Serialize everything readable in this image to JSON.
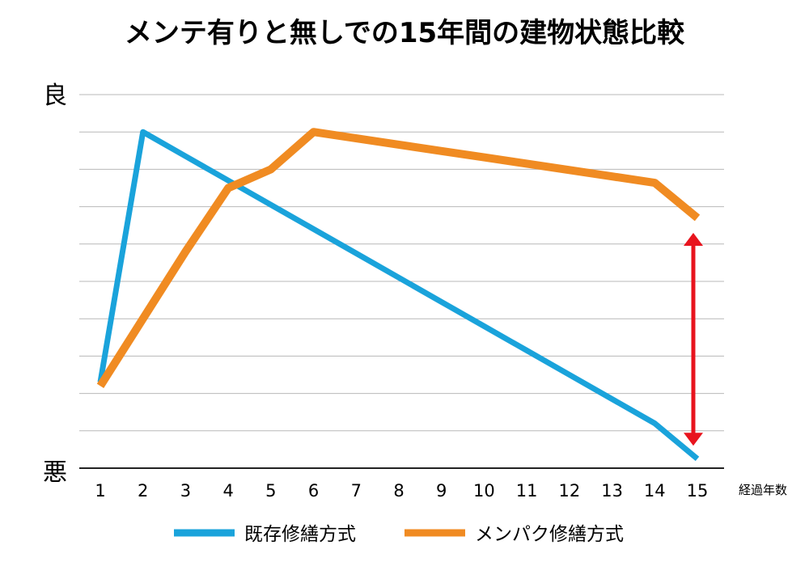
{
  "chart_data": {
    "type": "line",
    "title": "メンテ有りと無しでの15年間の建物状態比較",
    "xlabel": "経過年数",
    "ylabel_top": "良",
    "ylabel_bottom": "悪",
    "x": [
      1,
      2,
      3,
      4,
      5,
      6,
      7,
      8,
      9,
      10,
      11,
      12,
      13,
      14,
      15
    ],
    "ylim": [
      0,
      10
    ],
    "grid": true,
    "legend_position": "bottom",
    "series": [
      {
        "name": "既存修繕方式",
        "color": "#1aa3db",
        "values": [
          2.3,
          9.0,
          8.35,
          7.7,
          7.05,
          6.4,
          5.75,
          5.1,
          4.45,
          3.8,
          3.15,
          2.5,
          1.85,
          1.2,
          0.25
        ]
      },
      {
        "name": "メンパク修繕方式",
        "color": "#f08b22",
        "values": [
          2.2,
          4.0,
          5.8,
          7.5,
          8.0,
          9.0,
          8.83,
          8.66,
          8.49,
          8.32,
          8.15,
          7.98,
          7.81,
          7.64,
          6.7
        ]
      }
    ],
    "annotation": {
      "type": "double-arrow",
      "color": "#e8141e",
      "x": 15,
      "y_from": 0.6,
      "y_to": 6.3
    }
  }
}
